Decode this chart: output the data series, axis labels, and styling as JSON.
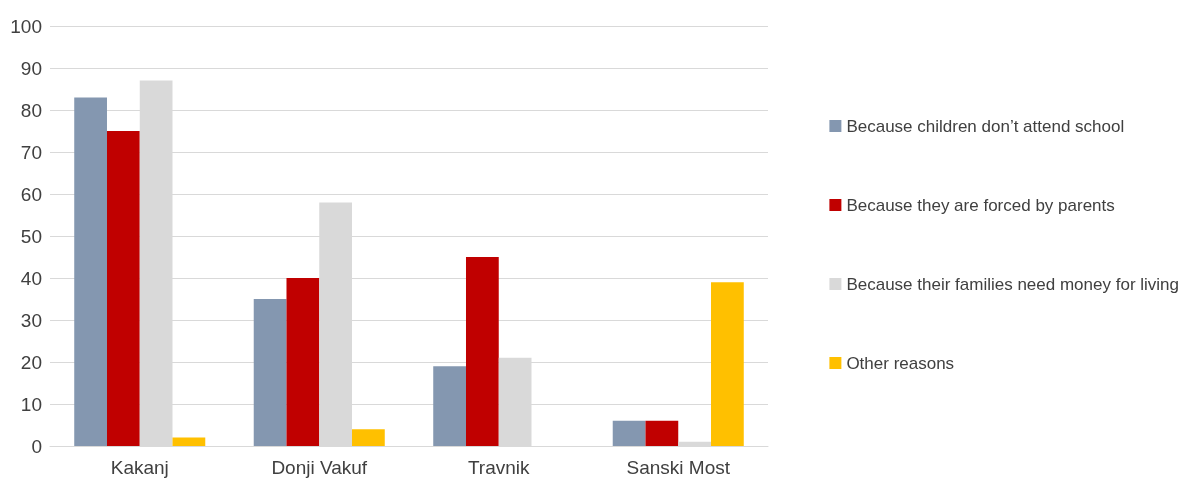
{
  "chart_data": {
    "type": "bar",
    "categories": [
      "Kakanj",
      "Donji Vakuf",
      "Travnik",
      "Sanski Most"
    ],
    "series": [
      {
        "name": "Because children don’t attend school",
        "color": "#8497b0",
        "values": [
          83,
          35,
          19,
          6
        ]
      },
      {
        "name": "Because they are forced by parents",
        "color": "#c00000",
        "values": [
          75,
          40,
          45,
          6
        ]
      },
      {
        "name": "Because their families need money for living",
        "color": "#d9d9d9",
        "values": [
          87,
          58,
          21,
          1
        ]
      },
      {
        "name": "Other reasons",
        "color": "#ffc000",
        "values": [
          2,
          4,
          0,
          39
        ]
      }
    ],
    "ylim": [
      0,
      100
    ],
    "yticks": [
      0,
      10,
      20,
      30,
      40,
      50,
      60,
      70,
      80,
      90,
      100
    ],
    "grid": "y",
    "legend": "right"
  }
}
